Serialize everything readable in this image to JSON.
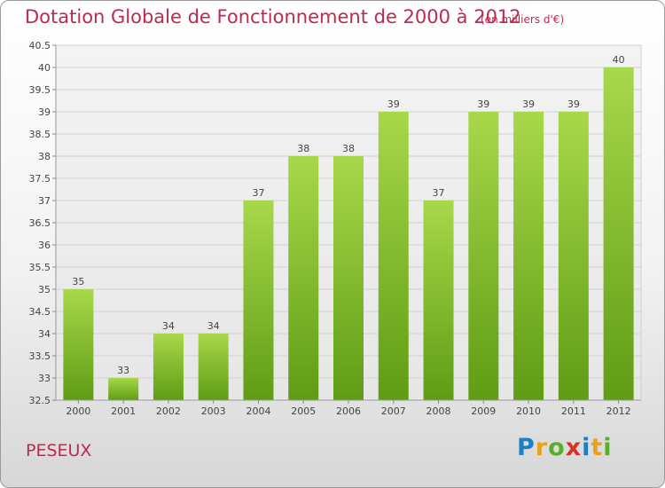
{
  "header": {
    "title": "Dotation Globale de Fonctionnement de 2000 à 2012",
    "subtitle": "(en milliers d'€)"
  },
  "footer": {
    "commune": "PESEUX",
    "logo_text": "Proxiti"
  },
  "colors": {
    "title": "#c0294f",
    "bar_light": "#a8d84a",
    "bar_dark": "#5f9c14"
  },
  "chart_data": {
    "type": "bar",
    "title": "Dotation Globale de Fonctionnement de 2000 à 2012",
    "subtitle": "(en milliers d'€)",
    "categories": [
      "2000",
      "2001",
      "2002",
      "2003",
      "2004",
      "2005",
      "2006",
      "2007",
      "2008",
      "2009",
      "2010",
      "2011",
      "2012"
    ],
    "values": [
      35,
      33,
      34,
      34,
      37,
      38,
      38,
      39,
      37,
      39,
      39,
      39,
      40
    ],
    "ylim": [
      32.5,
      40.5
    ],
    "yticks": [
      "32.5",
      "33",
      "33.5",
      "34",
      "34.5",
      "35",
      "35.5",
      "36",
      "36.5",
      "37",
      "37.5",
      "38",
      "38.5",
      "39",
      "39.5",
      "40",
      "40.5"
    ],
    "grid": true,
    "legend": "none"
  }
}
